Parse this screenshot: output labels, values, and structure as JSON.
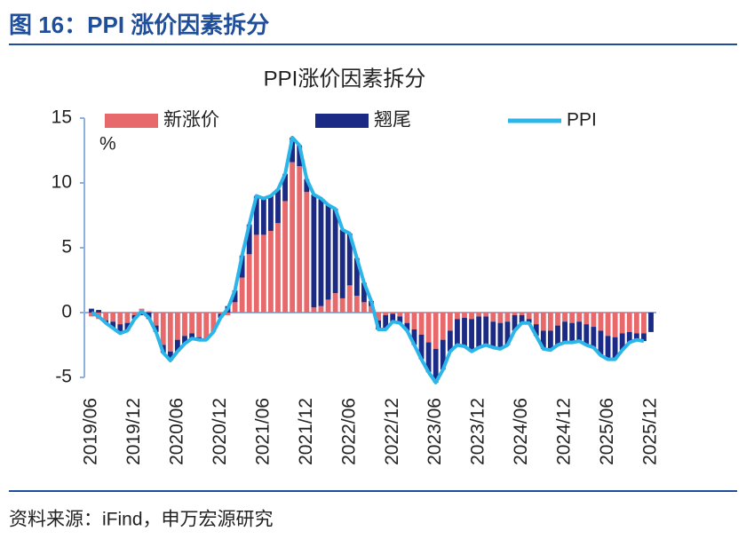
{
  "header": "图 16：PPI 涨价因素拆分",
  "source": "资料来源：iFind，申万宏源研究",
  "chart_data": {
    "type": "bar",
    "stacked": true,
    "title": "PPI涨价因素拆分",
    "y_label": "%",
    "categories": [
      "2019/06",
      null,
      null,
      null,
      null,
      null,
      "2019/12",
      null,
      null,
      null,
      null,
      null,
      "2020/06",
      null,
      null,
      null,
      null,
      null,
      "2020/12",
      null,
      null,
      null,
      null,
      null,
      "2021/06",
      null,
      null,
      null,
      null,
      null,
      "2021/12",
      null,
      null,
      null,
      null,
      null,
      "2022/06",
      null,
      null,
      null,
      null,
      null,
      "2022/12",
      null,
      null,
      null,
      null,
      null,
      "2023/06",
      null,
      null,
      null,
      null,
      null,
      "2023/12",
      null,
      null,
      null,
      null,
      null,
      "2024/06",
      null,
      null,
      null,
      null,
      null,
      "2024/12",
      null,
      null,
      null,
      null,
      null,
      "2025/06",
      null,
      null,
      null,
      null,
      null,
      "2025/12"
    ],
    "series": [
      {
        "name": "新涨价",
        "type": "bar",
        "color": "#e8696b",
        "values": [
          -0.3,
          -0.5,
          -0.6,
          -0.7,
          -0.9,
          -0.8,
          -0.2,
          0.3,
          0.1,
          -1.0,
          -2.5,
          -3.0,
          -2.1,
          -1.8,
          -1.6,
          -1.9,
          -2.0,
          -1.5,
          -0.1,
          -0.2,
          0.8,
          2.7,
          4.5,
          6.0,
          6.0,
          6.3,
          6.9,
          8.6,
          11.6,
          11.3,
          9.3,
          0.4,
          0.5,
          1.0,
          1.5,
          1.1,
          2.1,
          1.3,
          0.8,
          0.5,
          -0.6,
          -0.2,
          -0.1,
          -0.3,
          -0.8,
          -1.3,
          -1.7,
          -2.3,
          -2.8,
          -2.1,
          -1.4,
          -0.5,
          -0.4,
          -0.5,
          -0.3,
          -0.3,
          -0.7,
          -0.8,
          -0.7,
          -0.2,
          -0.2,
          -0.5,
          -0.9,
          -1.4,
          -1.4,
          -1.0,
          -0.7,
          -0.8,
          -0.7,
          -0.9,
          -1.1,
          -1.4,
          -1.8,
          -1.9,
          -1.6,
          -1.5,
          -1.6,
          -1.6,
          null
        ]
      },
      {
        "name": "翘尾",
        "type": "bar",
        "color": "#1b2a85",
        "values": [
          0.3,
          0.2,
          -0.2,
          -0.5,
          -0.7,
          -0.6,
          -0.3,
          -0.2,
          -0.5,
          -0.5,
          -0.6,
          -0.7,
          -0.9,
          -0.6,
          -0.4,
          -0.2,
          -0.1,
          0.0,
          -0.3,
          0.5,
          0.9,
          1.7,
          2.3,
          3.0,
          2.8,
          2.7,
          2.6,
          2.1,
          1.9,
          1.6,
          1.0,
          8.7,
          8.3,
          7.3,
          6.5,
          5.3,
          4.0,
          2.9,
          1.5,
          0.4,
          -0.7,
          -1.1,
          -0.6,
          -0.5,
          -0.6,
          -1.2,
          -1.9,
          -2.3,
          -2.6,
          -2.3,
          -1.6,
          -2.0,
          -2.2,
          -2.5,
          -2.4,
          -2.2,
          -2.0,
          -2.0,
          -1.8,
          -1.2,
          -0.6,
          -0.3,
          -0.9,
          -1.4,
          -1.5,
          -1.5,
          -1.6,
          -1.5,
          -1.5,
          -1.6,
          -1.6,
          -1.9,
          -1.8,
          -1.7,
          -1.3,
          -0.8,
          -0.5,
          -0.6,
          -1.5
        ]
      },
      {
        "name": "PPI",
        "type": "line",
        "color": "#2cb5e8",
        "values": [
          0.0,
          -0.3,
          -0.8,
          -1.2,
          -1.6,
          -1.4,
          -0.5,
          0.1,
          -0.4,
          -1.5,
          -3.1,
          -3.7,
          -3.0,
          -2.4,
          -2.0,
          -2.1,
          -2.1,
          -1.5,
          -0.4,
          0.3,
          1.7,
          4.4,
          6.8,
          9.0,
          8.8,
          9.0,
          9.5,
          10.7,
          13.5,
          12.9,
          10.3,
          9.1,
          8.8,
          8.3,
          8.0,
          6.4,
          6.1,
          4.2,
          2.3,
          0.9,
          -1.3,
          -1.3,
          -0.7,
          -0.8,
          -1.4,
          -2.5,
          -3.6,
          -4.6,
          -5.4,
          -4.4,
          -3.0,
          -2.5,
          -2.6,
          -3.0,
          -2.7,
          -2.5,
          -2.7,
          -2.8,
          -2.5,
          -1.4,
          -0.8,
          -0.8,
          -1.8,
          -2.8,
          -2.9,
          -2.5,
          -2.3,
          -2.3,
          -2.2,
          -2.5,
          -2.7,
          -3.3,
          -3.6,
          -3.6,
          -2.9,
          -2.3,
          -2.1,
          -2.2,
          null
        ]
      }
    ],
    "ylim": [
      -5,
      15
    ],
    "yticks": [
      -5,
      0,
      5,
      10,
      15
    ],
    "grid": false,
    "legend": "top"
  }
}
